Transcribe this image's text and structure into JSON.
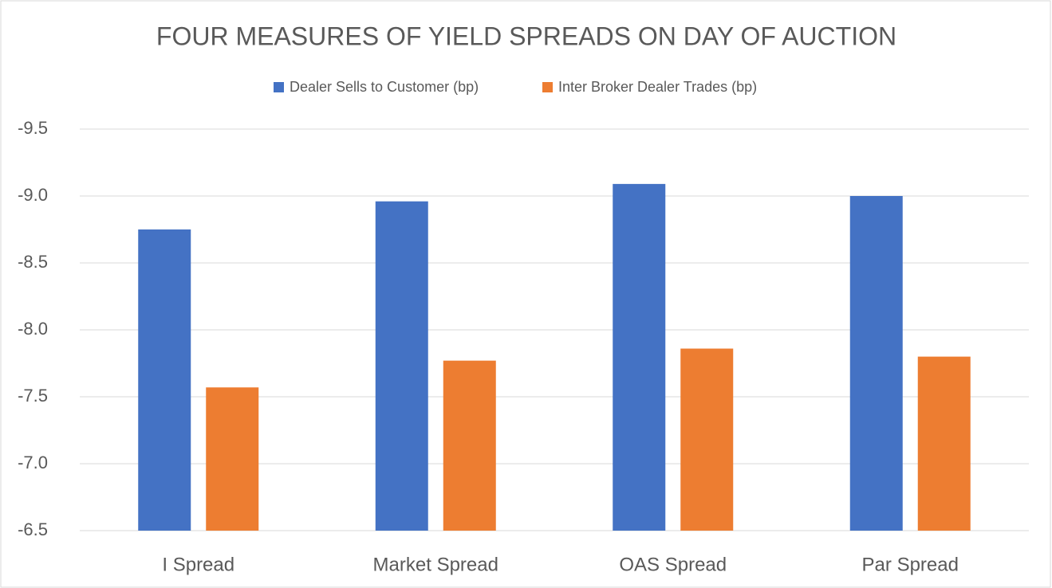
{
  "chart_data": {
    "type": "bar",
    "title": "FOUR MEASURES OF YIELD SPREADS ON DAY OF AUCTION",
    "categories": [
      "I Spread",
      "Market Spread",
      "OAS Spread",
      "Par Spread"
    ],
    "series": [
      {
        "name": "Dealer Sells to Customer (bp)",
        "color": "#4472c4",
        "values": [
          -8.75,
          -8.96,
          -9.09,
          -9.0
        ]
      },
      {
        "name": "Inter Broker Dealer Trades (bp)",
        "color": "#ed7d31",
        "values": [
          -7.57,
          -7.77,
          -7.86,
          -7.8
        ]
      }
    ],
    "ylim": [
      -6.5,
      -9.5
    ],
    "yticks": [
      -9.5,
      {
        "value": -9,
        "label": "-9.0"
      },
      -8.5,
      {
        "value": -8,
        "label": "-8.0"
      },
      -7.5,
      {
        "value": -7,
        "label": "-7.0"
      },
      -6.5
    ],
    "grid": true,
    "legend": "top"
  }
}
